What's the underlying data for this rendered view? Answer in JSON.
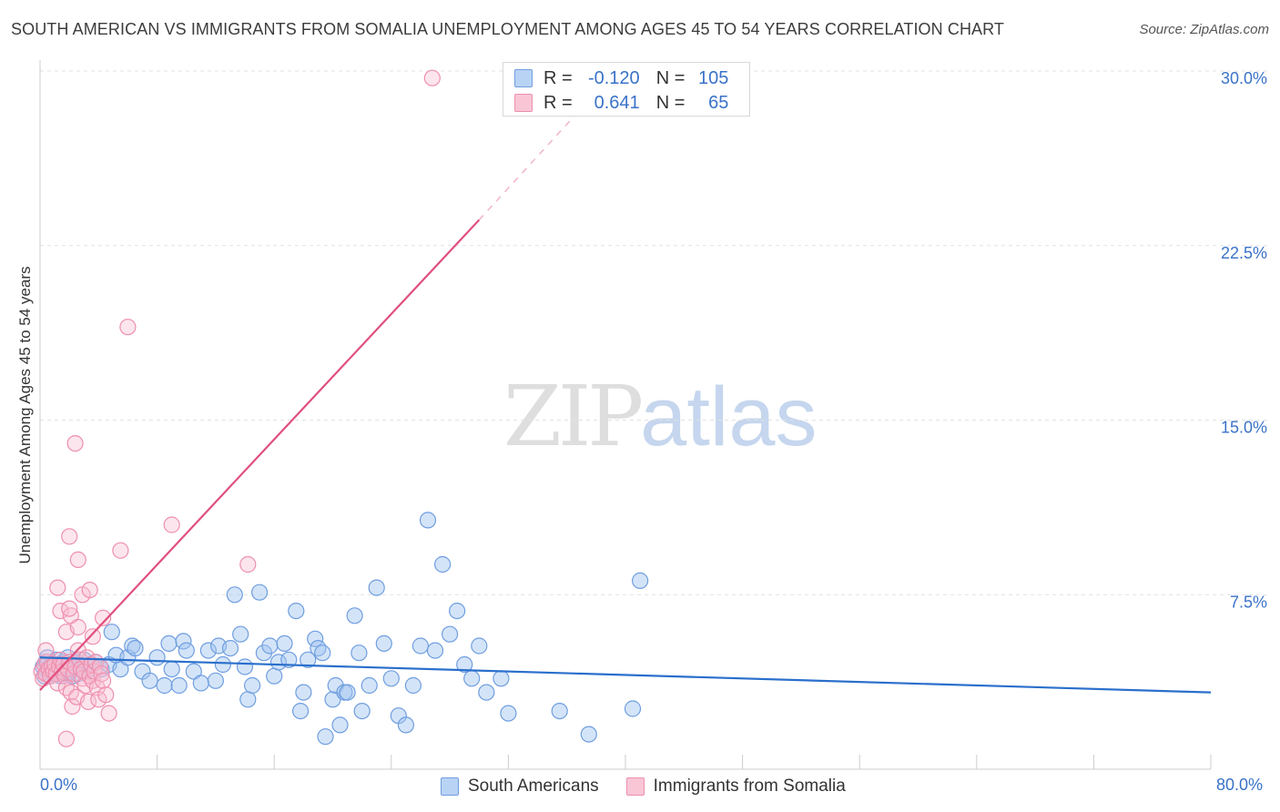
{
  "title": "SOUTH AMERICAN VS IMMIGRANTS FROM SOMALIA UNEMPLOYMENT AMONG AGES 45 TO 54 YEARS CORRELATION CHART",
  "source": "Source: ZipAtlas.com",
  "watermark": {
    "part1": "ZIP",
    "part2": "atlas"
  },
  "legend_top": [
    {
      "r_label": "R =",
      "r_value": "-0.120",
      "n_label": "N =",
      "n_value": "105"
    },
    {
      "r_label": "R =",
      "r_value": "0.641",
      "n_label": "N =",
      "n_value": "65"
    }
  ],
  "chart_data": {
    "type": "scatter",
    "title": "SOUTH AMERICAN VS IMMIGRANTS FROM SOMALIA UNEMPLOYMENT AMONG AGES 45 TO 54 YEARS CORRELATION CHART",
    "xlabel": "",
    "ylabel": "Unemployment Among Ages 45 to 54 years",
    "xlim": [
      0,
      80
    ],
    "ylim": [
      0,
      30
    ],
    "x_tick_labels": [
      "0.0%",
      "80.0%"
    ],
    "y_ticks": [
      7.5,
      15,
      22.5,
      30
    ],
    "y_tick_labels": [
      "7.5%",
      "15.0%",
      "22.5%",
      "30.0%"
    ],
    "grid": true,
    "colors": {
      "blue": "#6699dd",
      "blue_line": "#2a6fcc",
      "pink": "#e87fa0",
      "pink_line": "#e0507e",
      "tick_text": "#3a72c8"
    },
    "series": [
      {
        "name": "South Americans",
        "r": -0.12,
        "n": 105,
        "trend": {
          "x0": 0,
          "y0": 4.8,
          "x1": 80,
          "y1": 3.3
        },
        "points": [
          [
            0.2,
            4.4
          ],
          [
            0.3,
            4.0
          ],
          [
            0.4,
            4.6
          ],
          [
            0.5,
            4.2
          ],
          [
            0.5,
            4.8
          ],
          [
            0.6,
            4.3
          ],
          [
            0.7,
            4.0
          ],
          [
            0.8,
            4.5
          ],
          [
            0.9,
            4.1
          ],
          [
            1.0,
            4.4
          ],
          [
            1.1,
            4.7
          ],
          [
            1.2,
            4.2
          ],
          [
            1.3,
            4.5
          ],
          [
            1.4,
            4.0
          ],
          [
            1.5,
            4.3
          ],
          [
            1.6,
            4.6
          ],
          [
            1.7,
            4.1
          ],
          [
            1.8,
            4.4
          ],
          [
            1.9,
            4.8
          ],
          [
            2.0,
            4.2
          ],
          [
            2.1,
            4.5
          ],
          [
            2.2,
            4.0
          ],
          [
            2.3,
            4.3
          ],
          [
            2.5,
            4.6
          ],
          [
            2.6,
            4.1
          ],
          [
            2.8,
            4.4
          ],
          [
            3.0,
            4.7
          ],
          [
            3.2,
            4.2
          ],
          [
            3.5,
            4.5
          ],
          [
            3.8,
            4.6
          ],
          [
            4.2,
            4.3
          ],
          [
            4.7,
            4.5
          ],
          [
            4.9,
            5.9
          ],
          [
            5.2,
            4.9
          ],
          [
            5.5,
            4.3
          ],
          [
            6.0,
            4.8
          ],
          [
            6.3,
            5.3
          ],
          [
            6.5,
            5.2
          ],
          [
            7.0,
            4.2
          ],
          [
            7.5,
            3.8
          ],
          [
            8.0,
            4.8
          ],
          [
            8.5,
            3.6
          ],
          [
            8.8,
            5.4
          ],
          [
            9.0,
            4.3
          ],
          [
            9.5,
            3.6
          ],
          [
            9.8,
            5.5
          ],
          [
            10.0,
            5.1
          ],
          [
            10.5,
            4.2
          ],
          [
            11.0,
            3.7
          ],
          [
            11.5,
            5.1
          ],
          [
            12.0,
            3.8
          ],
          [
            12.2,
            5.3
          ],
          [
            12.5,
            4.5
          ],
          [
            13.0,
            5.2
          ],
          [
            13.3,
            7.5
          ],
          [
            13.7,
            5.8
          ],
          [
            14.0,
            4.4
          ],
          [
            14.2,
            3.0
          ],
          [
            14.5,
            3.6
          ],
          [
            15.0,
            7.6
          ],
          [
            15.3,
            5.0
          ],
          [
            15.7,
            5.3
          ],
          [
            16.0,
            4.0
          ],
          [
            16.3,
            4.6
          ],
          [
            16.7,
            5.4
          ],
          [
            17.0,
            4.7
          ],
          [
            17.5,
            6.8
          ],
          [
            17.8,
            2.5
          ],
          [
            18.0,
            3.3
          ],
          [
            18.3,
            4.7
          ],
          [
            18.8,
            5.6
          ],
          [
            19.0,
            5.2
          ],
          [
            19.3,
            5.0
          ],
          [
            19.5,
            1.4
          ],
          [
            20.0,
            3.0
          ],
          [
            20.2,
            3.6
          ],
          [
            20.5,
            1.9
          ],
          [
            20.8,
            3.3
          ],
          [
            21.0,
            3.3
          ],
          [
            21.5,
            6.6
          ],
          [
            21.8,
            5.0
          ],
          [
            22.0,
            2.5
          ],
          [
            22.5,
            3.6
          ],
          [
            23.0,
            7.8
          ],
          [
            23.5,
            5.4
          ],
          [
            24.0,
            3.9
          ],
          [
            24.5,
            2.3
          ],
          [
            25.0,
            1.9
          ],
          [
            25.5,
            3.6
          ],
          [
            26.0,
            5.3
          ],
          [
            26.5,
            10.7
          ],
          [
            27.0,
            5.1
          ],
          [
            27.5,
            8.8
          ],
          [
            28.0,
            5.8
          ],
          [
            28.5,
            6.8
          ],
          [
            29.0,
            4.5
          ],
          [
            29.5,
            3.9
          ],
          [
            30.0,
            5.3
          ],
          [
            30.5,
            3.3
          ],
          [
            31.5,
            3.9
          ],
          [
            32.0,
            2.4
          ],
          [
            35.5,
            2.5
          ],
          [
            37.5,
            1.5
          ],
          [
            40.5,
            2.6
          ],
          [
            41.0,
            8.1
          ]
        ]
      },
      {
        "name": "Immigrants from Somalia",
        "r": 0.641,
        "n": 65,
        "trend": {
          "x0": 0,
          "y0": 3.4,
          "x1": 30,
          "y1": 23.6
        },
        "trend_dashed_to": {
          "x": 37,
          "y": 28.4
        },
        "points": [
          [
            0.1,
            4.2
          ],
          [
            0.2,
            3.9
          ],
          [
            0.3,
            4.5
          ],
          [
            0.4,
            4.1
          ],
          [
            0.5,
            4.6
          ],
          [
            0.6,
            4.3
          ],
          [
            0.7,
            4.0
          ],
          [
            0.8,
            4.4
          ],
          [
            0.9,
            4.2
          ],
          [
            1.0,
            4.5
          ],
          [
            1.1,
            4.1
          ],
          [
            1.2,
            3.7
          ],
          [
            1.3,
            4.4
          ],
          [
            1.4,
            4.7
          ],
          [
            1.5,
            4.2
          ],
          [
            1.6,
            4.5
          ],
          [
            1.7,
            4.0
          ],
          [
            1.8,
            3.5
          ],
          [
            1.9,
            4.3
          ],
          [
            2.0,
            4.6
          ],
          [
            2.1,
            3.3
          ],
          [
            2.2,
            2.7
          ],
          [
            2.3,
            4.1
          ],
          [
            2.4,
            4.4
          ],
          [
            2.5,
            3.1
          ],
          [
            2.6,
            5.1
          ],
          [
            2.7,
            4.7
          ],
          [
            2.8,
            4.3
          ],
          [
            2.9,
            3.9
          ],
          [
            3.0,
            4.2
          ],
          [
            3.1,
            3.6
          ],
          [
            3.2,
            4.8
          ],
          [
            3.3,
            2.9
          ],
          [
            3.4,
            4.0
          ],
          [
            3.5,
            4.5
          ],
          [
            3.6,
            3.8
          ],
          [
            3.7,
            4.2
          ],
          [
            3.8,
            4.6
          ],
          [
            3.9,
            3.5
          ],
          [
            4.0,
            3.0
          ],
          [
            4.1,
            4.4
          ],
          [
            4.2,
            4.1
          ],
          [
            4.3,
            3.8
          ],
          [
            4.5,
            3.2
          ],
          [
            4.7,
            2.4
          ],
          [
            0.4,
            5.1
          ],
          [
            1.4,
            6.8
          ],
          [
            1.8,
            5.9
          ],
          [
            2.1,
            6.6
          ],
          [
            2.6,
            6.1
          ],
          [
            3.6,
            5.7
          ],
          [
            4.3,
            6.5
          ],
          [
            2.0,
            6.9
          ],
          [
            1.2,
            7.8
          ],
          [
            2.9,
            7.5
          ],
          [
            3.4,
            7.7
          ],
          [
            2.6,
            9.0
          ],
          [
            2.0,
            10.0
          ],
          [
            2.4,
            14.0
          ],
          [
            5.5,
            9.4
          ],
          [
            9.0,
            10.5
          ],
          [
            14.2,
            8.8
          ],
          [
            6.0,
            19.0
          ],
          [
            1.8,
            1.3
          ],
          [
            26.8,
            29.7
          ]
        ]
      }
    ]
  }
}
